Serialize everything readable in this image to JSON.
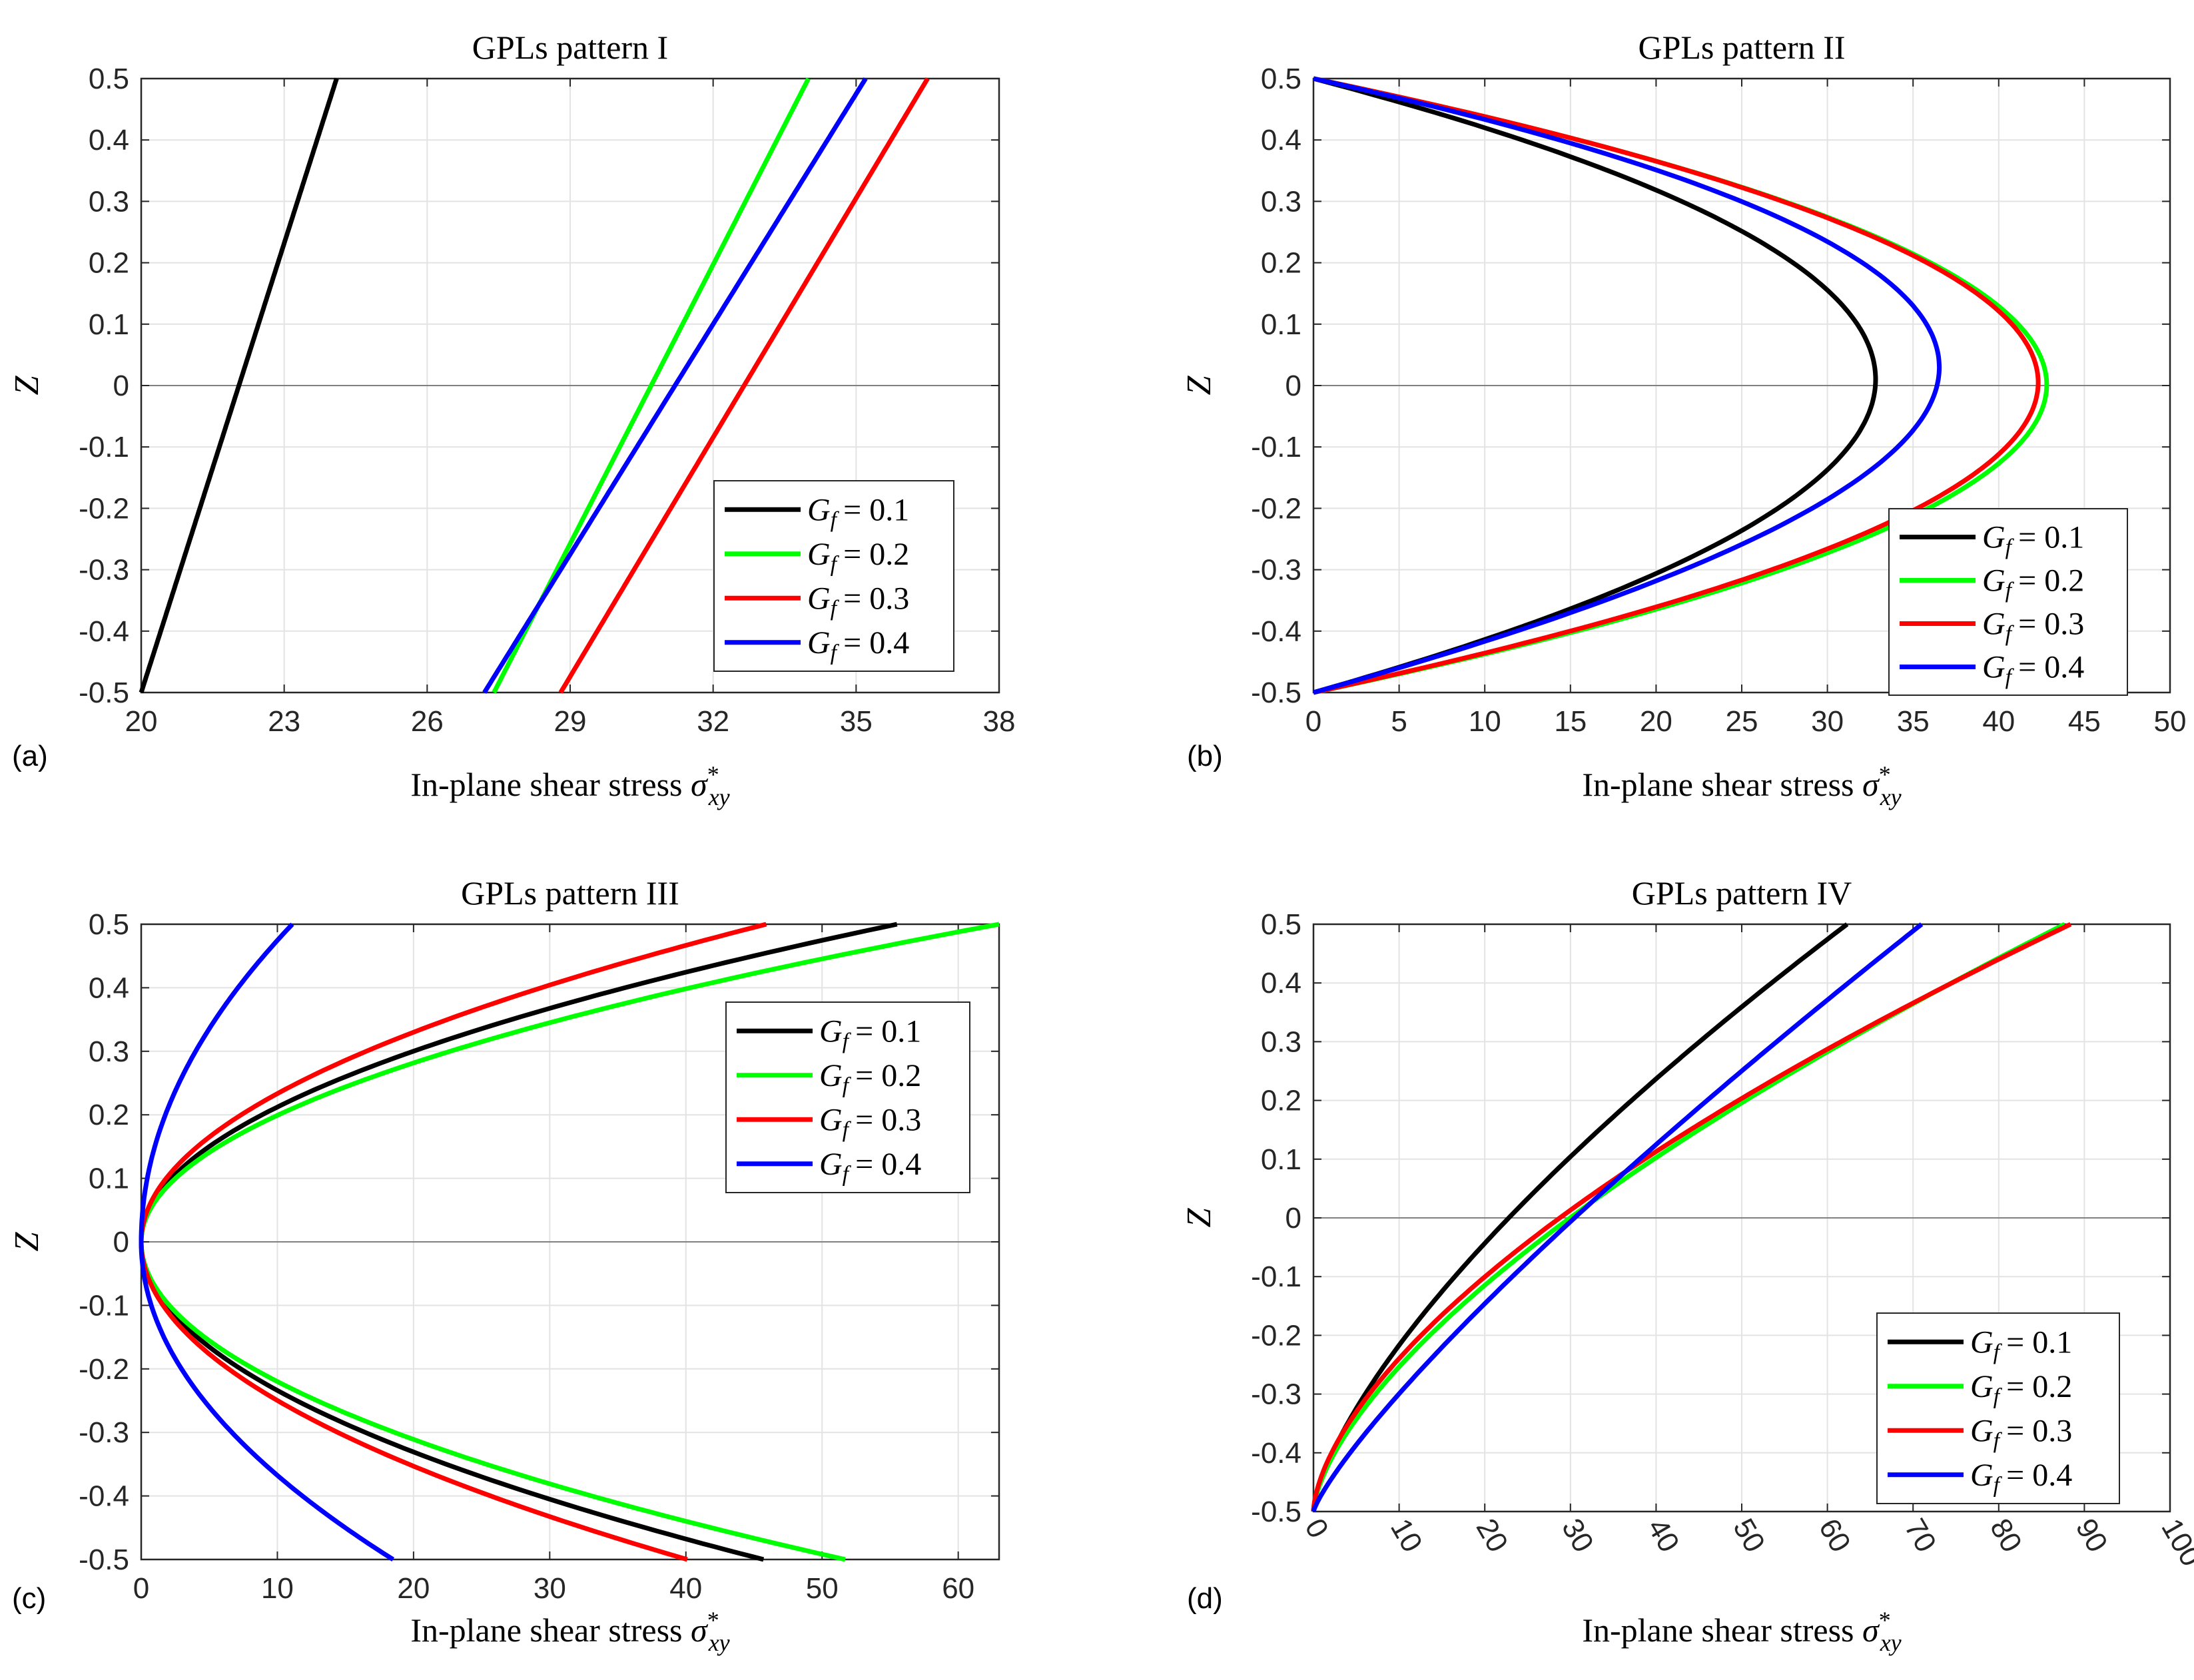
{
  "legend_symbol": "G",
  "legend_subscript": "f",
  "chart_data": [
    {
      "type": "line",
      "panel_label": "(a)",
      "title": "GPLs pattern I",
      "xlabel": "In-plane shear stress",
      "xlabel_symbol": "σ",
      "xlabel_sup": "*",
      "xlabel_sub": "xy",
      "ylabel": "Z",
      "xlim": [
        20,
        38
      ],
      "ylim": [
        -0.5,
        0.5
      ],
      "xticks": [
        20,
        23,
        26,
        29,
        32,
        35,
        38
      ],
      "xtick_labels": [
        "20",
        "23",
        "26",
        "29",
        "32",
        "35",
        "38"
      ],
      "yticks": [
        0.5,
        0.4,
        0.3,
        0.2,
        0.1,
        0,
        -0.1,
        -0.2,
        -0.3,
        -0.4,
        -0.5
      ],
      "ytick_labels": [
        "0.5",
        "0.4",
        "0.3",
        "0.2",
        "0.1",
        "0",
        "-0.1",
        "-0.2",
        "-0.3",
        "-0.4",
        "-0.5"
      ],
      "legend_position": "lower-right",
      "series": [
        {
          "name": "= 0.1",
          "color": "#000000",
          "model": "linear",
          "x_bottom": 20.0,
          "x_top": 24.1
        },
        {
          "name": "= 0.2",
          "color": "#00ff00",
          "model": "linear",
          "x_bottom": 27.4,
          "x_top": 34.0
        },
        {
          "name": "= 0.3",
          "color": "#ff0000",
          "model": "linear",
          "x_bottom": 28.8,
          "x_top": 36.5
        },
        {
          "name": "= 0.4",
          "color": "#0000ff",
          "model": "linear",
          "x_bottom": 27.2,
          "x_top": 35.2
        }
      ]
    },
    {
      "type": "line",
      "panel_label": "(b)",
      "title": "GPLs pattern II",
      "xlabel": "In-plane shear stress",
      "xlabel_symbol": "σ",
      "xlabel_sup": "*",
      "xlabel_sub": "xy",
      "ylabel": "Z",
      "xlim": [
        0,
        50
      ],
      "ylim": [
        -0.5,
        0.5
      ],
      "xticks": [
        0,
        5,
        10,
        15,
        20,
        25,
        30,
        35,
        40,
        45,
        50
      ],
      "xtick_labels": [
        "0",
        "5",
        "10",
        "15",
        "20",
        "25",
        "30",
        "35",
        "40",
        "45",
        "50"
      ],
      "yticks": [
        0.5,
        0.4,
        0.3,
        0.2,
        0.1,
        0,
        -0.1,
        -0.2,
        -0.3,
        -0.4,
        -0.5
      ],
      "ytick_labels": [
        "0.5",
        "0.4",
        "0.3",
        "0.2",
        "0.1",
        "0",
        "-0.1",
        "-0.2",
        "-0.3",
        "-0.4",
        "-0.5"
      ],
      "legend_position": "lower-right",
      "series": [
        {
          "name": "= 0.1",
          "color": "#000000",
          "model": "bell",
          "peak": 32.8,
          "asym": 0.04
        },
        {
          "name": "= 0.2",
          "color": "#00ff00",
          "model": "bell",
          "peak": 42.8,
          "asym": 0.005
        },
        {
          "name": "= 0.3",
          "color": "#ff0000",
          "model": "bell",
          "peak": 42.3,
          "asym": 0.02
        },
        {
          "name": "= 0.4",
          "color": "#0000ff",
          "model": "bell",
          "peak": 36.4,
          "asym": 0.12
        }
      ]
    },
    {
      "type": "line",
      "panel_label": "(c)",
      "title": "GPLs pattern III",
      "xlabel": "In-plane shear stress",
      "xlabel_symbol": "σ",
      "xlabel_sup": "*",
      "xlabel_sub": "xy",
      "ylabel": "Z",
      "xlim": [
        0,
        63
      ],
      "ylim": [
        -0.5,
        0.5
      ],
      "xticks": [
        0,
        10,
        20,
        30,
        40,
        50,
        60
      ],
      "xtick_labels": [
        "0",
        "10",
        "20",
        "30",
        "40",
        "50",
        "60"
      ],
      "yticks": [
        0.5,
        0.4,
        0.3,
        0.2,
        0.1,
        0,
        -0.1,
        -0.2,
        -0.3,
        -0.4,
        -0.5
      ],
      "ytick_labels": [
        "0.5",
        "0.4",
        "0.3",
        "0.2",
        "0.1",
        "0",
        "-0.1",
        "-0.2",
        "-0.3",
        "-0.4",
        "-0.5"
      ],
      "legend_position": "top-right",
      "series": [
        {
          "name": "= 0.1",
          "color": "#000000",
          "model": "quad",
          "top": 55.5,
          "bottom": 45.7
        },
        {
          "name": "= 0.2",
          "color": "#00ff00",
          "model": "quad",
          "top": 63.0,
          "bottom": 51.7
        },
        {
          "name": "= 0.3",
          "color": "#ff0000",
          "model": "quad",
          "top": 45.9,
          "bottom": 40.1
        },
        {
          "name": "= 0.4",
          "color": "#0000ff",
          "model": "quad",
          "top": 11.1,
          "bottom": 18.5
        }
      ]
    },
    {
      "type": "line",
      "panel_label": "(d)",
      "title": "GPLs pattern IV",
      "xlabel": "In-plane shear stress",
      "xlabel_symbol": "σ",
      "xlabel_sup": "*",
      "xlabel_sub": "xy",
      "ylabel": "Z",
      "xlim": [
        0,
        100
      ],
      "ylim": [
        -0.5,
        0.5
      ],
      "xticks": [
        0,
        10,
        20,
        30,
        40,
        50,
        60,
        70,
        80,
        90,
        100
      ],
      "xtick_labels": [
        "0",
        "10",
        "20",
        "30",
        "40",
        "50",
        "60",
        "70",
        "80",
        "90",
        "100"
      ],
      "xtick_rotation": -60,
      "yticks": [
        0.5,
        0.4,
        0.3,
        0.2,
        0.1,
        0,
        -0.1,
        -0.2,
        -0.3,
        -0.4,
        -0.5
      ],
      "ytick_labels": [
        "0.5",
        "0.4",
        "0.3",
        "0.2",
        "0.1",
        "0",
        "-0.1",
        "-0.2",
        "-0.3",
        "-0.4",
        "-0.5"
      ],
      "legend_position": "lower-right",
      "series": [
        {
          "name": "= 0.1",
          "color": "#000000",
          "model": "power",
          "top": 62.3,
          "exp": 1.45
        },
        {
          "name": "= 0.2",
          "color": "#00ff00",
          "model": "power",
          "top": 87.7,
          "exp": 1.55
        },
        {
          "name": "= 0.3",
          "color": "#ff0000",
          "model": "power",
          "top": 88.4,
          "exp": 1.62
        },
        {
          "name": "= 0.4",
          "color": "#0000ff",
          "model": "power",
          "top": 71.0,
          "exp": 1.22
        }
      ]
    }
  ]
}
